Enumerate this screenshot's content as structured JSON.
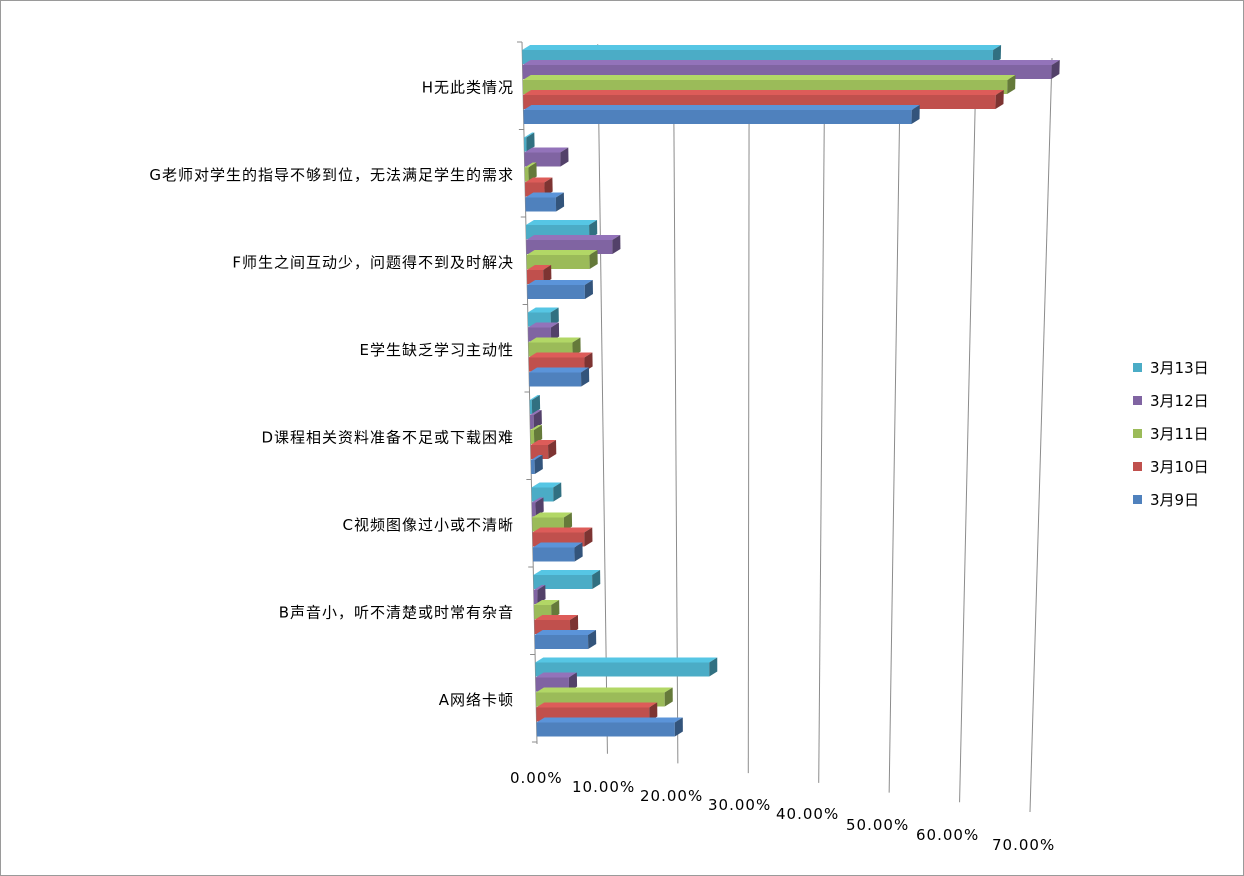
{
  "chart_data": {
    "type": "bar",
    "orientation": "horizontal",
    "style": "3d",
    "title": "",
    "xlabel": "",
    "ylabel": "",
    "xlim": [
      0,
      0.7
    ],
    "grid": true,
    "legend_position": "right",
    "categories": [
      "A网络卡顿",
      "B声音小，听不清楚或时常有杂音",
      "C视频图像过小或不清晰",
      "D课程相关资料准备不足或下载困难",
      "E学生缺乏学习主动性",
      "F师生之间互动少，问题得不到及时解决",
      "G老师对学生的指导不够到位，无法满足学生的需求",
      "H无此类情况"
    ],
    "tick_labels": [
      "0.00%",
      "10.00%",
      "20.00%",
      "30.00%",
      "40.00%",
      "50.00%",
      "60.00%",
      "70.00%"
    ],
    "series": [
      {
        "name": "3月13日",
        "color": "#4BACC6",
        "values": [
          0.245,
          0.082,
          0.03,
          0.003,
          0.031,
          0.085,
          0.003,
          0.622
        ]
      },
      {
        "name": "3月12日",
        "color": "#8064A2",
        "values": [
          0.047,
          0.005,
          0.005,
          0.005,
          0.031,
          0.116,
          0.048,
          0.7
        ]
      },
      {
        "name": "3月11日",
        "color": "#9BBB59",
        "values": [
          0.182,
          0.024,
          0.044,
          0.005,
          0.06,
          0.085,
          0.005,
          0.642
        ]
      },
      {
        "name": "3月10日",
        "color": "#C0504D",
        "values": [
          0.16,
          0.05,
          0.072,
          0.024,
          0.076,
          0.022,
          0.026,
          0.627
        ]
      },
      {
        "name": "3月9日",
        "color": "#4F81BD",
        "values": [
          0.196,
          0.075,
          0.058,
          0.005,
          0.071,
          0.078,
          0.041,
          0.516
        ]
      }
    ]
  }
}
